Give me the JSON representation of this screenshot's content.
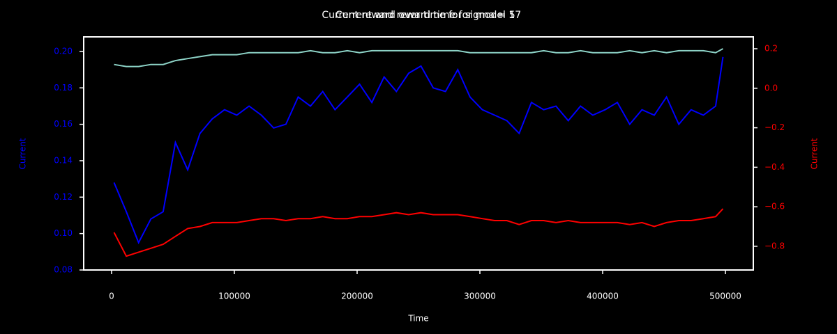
{
  "chart_data": {
    "type": "line",
    "titles": [
      "Current reward over time for sigma = 5",
      "Current and reward time for model 17"
    ],
    "xlabel": "Time",
    "ylabel": "Current",
    "y2label": "Current",
    "ylabel_color": "#0000ff",
    "y2label_color": "#ff0000",
    "x": [
      2000,
      12000,
      22000,
      32000,
      42000,
      52000,
      62000,
      72000,
      82000,
      92000,
      102000,
      112000,
      122000,
      132000,
      142000,
      152000,
      162000,
      172000,
      182000,
      192000,
      202000,
      212000,
      222000,
      232000,
      242000,
      252000,
      262000,
      272000,
      282000,
      292000,
      302000,
      312000,
      322000,
      332000,
      342000,
      352000,
      362000,
      372000,
      382000,
      392000,
      402000,
      412000,
      422000,
      432000,
      442000,
      452000,
      462000,
      472000,
      482000,
      492000,
      498000
    ],
    "series": [
      {
        "color": "#0000ff",
        "axis": "y",
        "values": [
          0.128,
          0.112,
          0.095,
          0.108,
          0.112,
          0.15,
          0.135,
          0.155,
          0.163,
          0.168,
          0.165,
          0.17,
          0.165,
          0.158,
          0.16,
          0.175,
          0.17,
          0.178,
          0.168,
          0.175,
          0.182,
          0.172,
          0.186,
          0.178,
          0.188,
          0.192,
          0.18,
          0.178,
          0.19,
          0.175,
          0.168,
          0.165,
          0.162,
          0.155,
          0.172,
          0.168,
          0.17,
          0.162,
          0.17,
          0.165,
          0.168,
          0.172,
          0.16,
          0.168,
          0.165,
          0.175,
          0.16,
          0.168,
          0.165,
          0.17,
          0.197
        ]
      },
      {
        "color": "#ff0000",
        "axis": "y2",
        "values": [
          -0.73,
          -0.85,
          -0.83,
          -0.81,
          -0.79,
          -0.75,
          -0.71,
          -0.7,
          -0.68,
          -0.68,
          -0.68,
          -0.67,
          -0.66,
          -0.66,
          -0.67,
          -0.66,
          -0.66,
          -0.65,
          -0.66,
          -0.66,
          -0.65,
          -0.65,
          -0.64,
          -0.63,
          -0.64,
          -0.63,
          -0.64,
          -0.64,
          -0.64,
          -0.65,
          -0.66,
          -0.67,
          -0.67,
          -0.69,
          -0.67,
          -0.67,
          -0.68,
          -0.67,
          -0.68,
          -0.68,
          -0.68,
          -0.68,
          -0.69,
          -0.68,
          -0.7,
          -0.68,
          -0.67,
          -0.67,
          -0.66,
          -0.65,
          -0.61
        ]
      },
      {
        "color": "#8dd3c7",
        "axis": "y2",
        "values": [
          0.12,
          0.11,
          0.11,
          0.12,
          0.12,
          0.14,
          0.15,
          0.16,
          0.17,
          0.17,
          0.17,
          0.18,
          0.18,
          0.18,
          0.18,
          0.18,
          0.19,
          0.18,
          0.18,
          0.19,
          0.18,
          0.19,
          0.19,
          0.19,
          0.19,
          0.19,
          0.19,
          0.19,
          0.19,
          0.18,
          0.18,
          0.18,
          0.18,
          0.18,
          0.18,
          0.19,
          0.18,
          0.18,
          0.19,
          0.18,
          0.18,
          0.18,
          0.19,
          0.18,
          0.19,
          0.18,
          0.19,
          0.19,
          0.19,
          0.18,
          0.2
        ]
      }
    ],
    "xlim": [
      -22700,
      522700
    ],
    "xticks": [
      0,
      100000,
      200000,
      300000,
      400000,
      500000
    ],
    "ylim": [
      0.08,
      0.208
    ],
    "yticks": [
      {
        "value": 0.08,
        "label": "0.08"
      },
      {
        "value": 0.1,
        "label": "0.10"
      },
      {
        "value": 0.12,
        "label": "0.12"
      },
      {
        "value": 0.14,
        "label": "0.14"
      },
      {
        "value": 0.16,
        "label": "0.16"
      },
      {
        "value": 0.18,
        "label": "0.18"
      },
      {
        "value": 0.2,
        "label": "0.20"
      }
    ],
    "y2lim": [
      -0.92,
      0.26
    ],
    "y2ticks": [
      {
        "value": -0.8,
        "label": "−0.8"
      },
      {
        "value": -0.6,
        "label": "−0.6"
      },
      {
        "value": -0.4,
        "label": "−0.4"
      },
      {
        "value": -0.2,
        "label": "−0.2"
      },
      {
        "value": 0,
        "label": "0.0"
      },
      {
        "value": 0.2,
        "label": "0.2"
      }
    ],
    "grid": false
  }
}
